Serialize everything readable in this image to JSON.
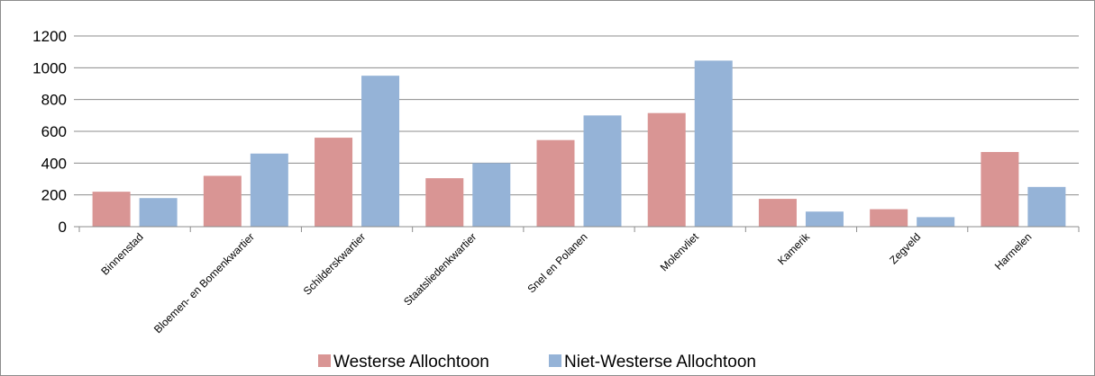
{
  "chart_data": {
    "type": "bar",
    "title": "",
    "xlabel": "",
    "ylabel": "",
    "ylim": [
      0,
      1200
    ],
    "yticks": [
      0,
      200,
      400,
      600,
      800,
      1000,
      1200
    ],
    "grid": true,
    "legend": "bottom",
    "categories": [
      "Binnenstad",
      "Bloemen- en Bomenkwartier",
      "Schilderskwartier",
      "Staatsliedenkwartier",
      "Snel en Polanen",
      "Molenvliet",
      "Kamerik",
      "Zegveld",
      "Harmelen"
    ],
    "series": [
      {
        "name": "Westerse Allochtoon",
        "color": "#d99594",
        "values": [
          220,
          320,
          560,
          305,
          545,
          715,
          175,
          110,
          470
        ]
      },
      {
        "name": "Niet-Westerse Allochtoon",
        "color": "#95b3d7",
        "values": [
          180,
          460,
          950,
          400,
          700,
          1045,
          95,
          60,
          250
        ]
      }
    ]
  }
}
